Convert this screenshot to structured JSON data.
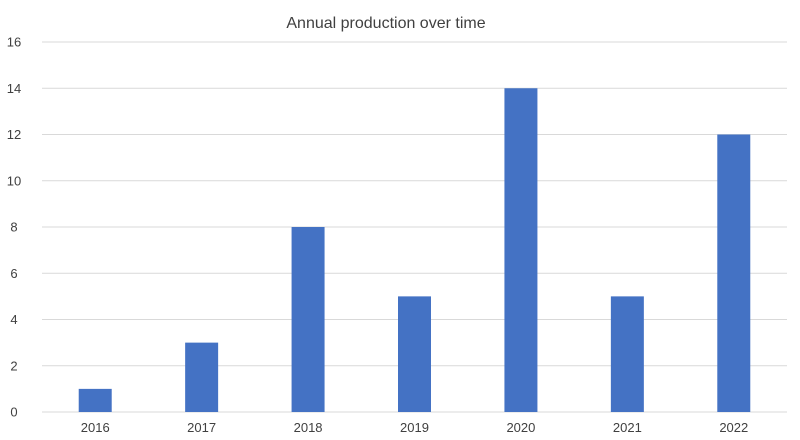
{
  "chart_data": {
    "type": "bar",
    "title": "Annual production over time",
    "xlabel": "",
    "ylabel": "",
    "categories": [
      "2016",
      "2017",
      "2018",
      "2019",
      "2020",
      "2021",
      "2022"
    ],
    "values": [
      1,
      3,
      8,
      5,
      14,
      5,
      12
    ],
    "ylim": [
      0,
      16
    ],
    "yticks": [
      "0",
      "2",
      "4",
      "6",
      "8",
      "10",
      "12",
      "14",
      "16"
    ],
    "grid": true,
    "legend": "none",
    "colors": {
      "bar": "#4472C4",
      "grid": "#d9d9d9",
      "text": "#404040"
    }
  }
}
